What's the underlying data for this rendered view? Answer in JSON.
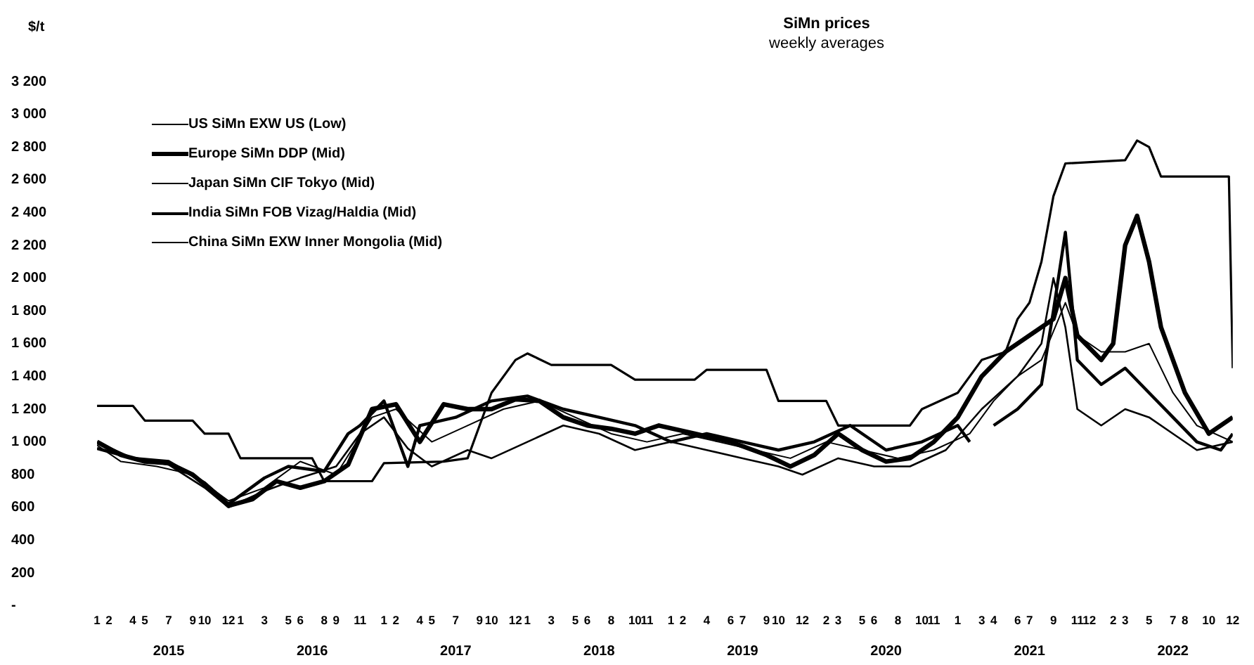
{
  "chart_data": {
    "type": "line",
    "title": "SiMn prices",
    "subtitle": "weekly averages",
    "ylabel": "$/t",
    "xlim": [
      "2015-01",
      "2022-12"
    ],
    "x2lim": [
      "2015-07",
      "2022-07"
    ],
    "xticks": [
      {
        "value": "2015-01",
        "label": "1"
      },
      {
        "value": "2015-02",
        "label": "2"
      },
      {
        "value": "2015-04",
        "label": "4"
      },
      {
        "value": "2015-05",
        "label": "5"
      },
      {
        "value": "2015-07",
        "label": "7"
      },
      {
        "value": "2015-09",
        "label": "9"
      },
      {
        "value": "2015-10",
        "label": "10"
      },
      {
        "value": "2015-12",
        "label": "12"
      },
      {
        "value": "2016-01",
        "label": "1"
      },
      {
        "value": "2016-03",
        "label": "3"
      },
      {
        "value": "2016-05",
        "label": "5"
      },
      {
        "value": "2016-06",
        "label": "6"
      },
      {
        "value": "2016-08",
        "label": "8"
      },
      {
        "value": "2016-09",
        "label": "9"
      },
      {
        "value": "2016-11",
        "label": "11"
      },
      {
        "value": "2017-01",
        "label": "1"
      },
      {
        "value": "2017-02",
        "label": "2"
      },
      {
        "value": "2017-04",
        "label": "4"
      },
      {
        "value": "2017-05",
        "label": "5"
      },
      {
        "value": "2017-07",
        "label": "7"
      },
      {
        "value": "2017-09",
        "label": "9"
      },
      {
        "value": "2017-10",
        "label": "10"
      },
      {
        "value": "2017-12",
        "label": "12"
      },
      {
        "value": "2018-01",
        "label": "1"
      },
      {
        "value": "2018-03",
        "label": "3"
      },
      {
        "value": "2018-05",
        "label": "5"
      },
      {
        "value": "2018-06",
        "label": "6"
      },
      {
        "value": "2018-08",
        "label": "8"
      },
      {
        "value": "2018-10",
        "label": "10"
      },
      {
        "value": "2018-11",
        "label": "11"
      },
      {
        "value": "2019-01",
        "label": "1"
      },
      {
        "value": "2019-02",
        "label": "2"
      },
      {
        "value": "2019-04",
        "label": "4"
      },
      {
        "value": "2019-06",
        "label": "6"
      },
      {
        "value": "2019-07",
        "label": "7"
      },
      {
        "value": "2019-09",
        "label": "9"
      },
      {
        "value": "2019-10",
        "label": "10"
      },
      {
        "value": "2019-12",
        "label": "12"
      },
      {
        "value": "2020-02",
        "label": "2"
      },
      {
        "value": "2020-03",
        "label": "3"
      },
      {
        "value": "2020-05",
        "label": "5"
      },
      {
        "value": "2020-06",
        "label": "6"
      },
      {
        "value": "2020-08",
        "label": "8"
      },
      {
        "value": "2020-10",
        "label": "10"
      },
      {
        "value": "2020-11",
        "label": "11"
      },
      {
        "value": "2021-01",
        "label": "1"
      },
      {
        "value": "2021-03",
        "label": "3"
      },
      {
        "value": "2021-04",
        "label": "4"
      },
      {
        "value": "2021-06",
        "label": "6"
      },
      {
        "value": "2021-07",
        "label": "7"
      },
      {
        "value": "2021-09",
        "label": "9"
      },
      {
        "value": "2021-11",
        "label": "11"
      },
      {
        "value": "2021-12",
        "label": "12"
      },
      {
        "value": "2022-02",
        "label": "2"
      },
      {
        "value": "2022-03",
        "label": "3"
      },
      {
        "value": "2022-05",
        "label": "5"
      },
      {
        "value": "2022-07",
        "label": "7"
      },
      {
        "value": "2022-08",
        "label": "8"
      },
      {
        "value": "2022-10",
        "label": "10"
      },
      {
        "value": "2022-12",
        "label": "12"
      }
    ],
    "x2ticks": [
      {
        "value": "2015-07",
        "label": "2015"
      },
      {
        "value": "2016-07",
        "label": "2016"
      },
      {
        "value": "2017-07",
        "label": "2017"
      },
      {
        "value": "2018-07",
        "label": "2018"
      },
      {
        "value": "2019-07",
        "label": "2019"
      },
      {
        "value": "2020-07",
        "label": "2020"
      },
      {
        "value": "2021-07",
        "label": "2021"
      },
      {
        "value": "2022-07",
        "label": "2022"
      }
    ],
    "ylim": [
      0,
      3200
    ],
    "yticks": [
      {
        "value": 0,
        "label": "-"
      },
      200,
      400,
      600,
      800,
      {
        "value": 1000,
        "label": "1 000"
      },
      {
        "value": 1200,
        "label": "1 200"
      },
      {
        "value": 1400,
        "label": "1 400"
      },
      {
        "value": 1600,
        "label": "1 600"
      },
      {
        "value": 1800,
        "label": "1 800"
      },
      {
        "value": 2000,
        "label": "2 000"
      },
      {
        "value": 2200,
        "label": "2 200"
      },
      {
        "value": 2400,
        "label": "2 400"
      },
      {
        "value": 2600,
        "label": "2 600"
      },
      {
        "value": 2800,
        "label": "2 800"
      },
      {
        "value": 3000,
        "label": "3 000"
      },
      {
        "value": 3200,
        "label": "3 200"
      }
    ],
    "grid": false,
    "legend": "top left",
    "marker": "none",
    "line_style": "solid",
    "series": [
      {
        "name": "US SiMn EXW US (Low)",
        "color": "#000000",
        "x": [
          "2015-01",
          "2015-04",
          "2015-05",
          "2015-09",
          "2015-10",
          "2015-12",
          "2016-01",
          "2016-07",
          "2016-08",
          "2016-12",
          "2017-01",
          "2017-06",
          "2017-08",
          "2017-10",
          "2017-12",
          "2018-01",
          "2018-03",
          "2018-08",
          "2018-10",
          "2019-03",
          "2019-04",
          "2019-09",
          "2019-10",
          "2020-02",
          "2020-03",
          "2020-09",
          "2020-10",
          "2021-01",
          "2021-03",
          "2021-05",
          "2021-06",
          "2021-07",
          "2021-08",
          "2021-09",
          "2021-10",
          "2022-03",
          "2022-04",
          "2022-05",
          "2022-06",
          "2022-11-22",
          "2022-12"
        ],
        "values": [
          1220,
          1220,
          1130,
          1130,
          1050,
          1050,
          900,
          900,
          760,
          760,
          870,
          880,
          900,
          1300,
          1500,
          1540,
          1470,
          1470,
          1380,
          1380,
          1440,
          1440,
          1250,
          1250,
          1100,
          1100,
          1200,
          1300,
          1500,
          1550,
          1750,
          1850,
          2100,
          2500,
          2700,
          2720,
          2840,
          2800,
          2620,
          2620,
          1450
        ]
      },
      {
        "name": "Europe SiMn DDP (Mid)",
        "color": "#000000",
        "x": [
          "2015-01",
          "2015-03",
          "2015-05",
          "2015-07",
          "2015-09",
          "2015-11",
          "2015-12",
          "2016-02",
          "2016-04",
          "2016-06",
          "2016-08",
          "2016-10",
          "2016-12",
          "2017-02",
          "2017-04",
          "2017-06",
          "2017-08",
          "2017-10",
          "2017-12",
          "2018-02",
          "2018-04",
          "2018-06",
          "2018-08",
          "2018-10",
          "2018-12",
          "2019-03",
          "2019-06",
          "2019-09",
          "2019-11",
          "2020-01",
          "2020-03",
          "2020-05",
          "2020-07",
          "2020-09",
          "2020-11",
          "2021-01",
          "2021-03",
          "2021-05",
          "2021-07",
          "2021-09",
          "2021-10",
          "2021-11",
          "2022-01",
          "2022-02",
          "2022-03",
          "2022-04",
          "2022-05",
          "2022-06",
          "2022-08",
          "2022-10",
          "2022-12"
        ],
        "values": [
          1000,
          920,
          880,
          870,
          800,
          680,
          610,
          650,
          760,
          720,
          760,
          860,
          1200,
          1230,
          1000,
          1230,
          1200,
          1200,
          1260,
          1250,
          1150,
          1100,
          1080,
          1050,
          1100,
          1050,
          1000,
          920,
          850,
          920,
          1050,
          950,
          880,
          900,
          1000,
          1150,
          1400,
          1550,
          1650,
          1750,
          2000,
          1650,
          1500,
          1600,
          2200,
          2380,
          2100,
          1700,
          1300,
          1050,
          1150
        ]
      },
      {
        "name": "Japan SiMn CIF Tokyo (Mid)",
        "color": "#000000",
        "x": [
          "2015-01",
          "2015-03",
          "2015-06",
          "2015-09",
          "2015-12",
          "2016-03",
          "2016-06",
          "2016-09",
          "2016-12",
          "2017-02",
          "2017-05",
          "2017-08",
          "2017-11",
          "2018-02",
          "2018-05",
          "2018-08",
          "2018-11",
          "2019-02",
          "2019-05",
          "2019-08",
          "2019-11",
          "2020-02",
          "2020-05",
          "2020-08",
          "2020-11",
          "2021-02",
          "2021-04",
          "2021-06",
          "2021-08",
          "2021-10",
          "2021-11",
          "2022-01",
          "2022-03",
          "2022-05",
          "2022-07",
          "2022-09",
          "2022-12"
        ],
        "values": [
          980,
          880,
          850,
          800,
          640,
          720,
          880,
          800,
          1150,
          1200,
          1000,
          1100,
          1200,
          1250,
          1150,
          1050,
          1000,
          1050,
          1000,
          950,
          900,
          1000,
          950,
          900,
          950,
          1050,
          1250,
          1400,
          1500,
          1850,
          1650,
          1550,
          1550,
          1600,
          1300,
          1100,
          1000
        ]
      },
      {
        "name": "India SiMn FOB Vizag/Haldia (Mid)",
        "color": "#000000",
        "x": [
          "2015-01",
          "2015-04",
          "2015-07",
          "2015-10",
          "2015-12",
          "2016-03",
          "2016-05",
          "2016-08",
          "2016-10",
          "2016-11",
          "2017-01",
          "2017-03",
          "2017-04",
          "2017-07",
          "2017-10",
          "2018-01",
          "2018-04",
          "2018-07",
          "2018-10",
          "2019-01",
          "2019-04",
          "2019-07",
          "2019-10",
          "2020-01",
          "2020-04",
          "2020-07",
          "2020-10",
          "2021-01",
          "2021-02",
          "2021-03",
          "2021-04",
          "2021-06",
          "2021-08",
          "2021-09",
          "2021-10",
          "2021-11",
          "2022-01",
          "2022-03",
          "2022-05",
          "2022-07",
          "2022-09",
          "2022-11",
          "2022-12"
        ],
        "values": [
          960,
          900,
          880,
          750,
          620,
          780,
          850,
          820,
          1050,
          1100,
          1250,
          850,
          1100,
          1150,
          1250,
          1280,
          1200,
          1150,
          1100,
          1000,
          1050,
          1000,
          950,
          1000,
          1100,
          950,
          1000,
          1100,
          1000,
          null,
          1100,
          1200,
          1350,
          1800,
          2280,
          1500,
          1350,
          1450,
          1300,
          1150,
          1000,
          950,
          1050
        ]
      },
      {
        "name": "China SiMn EXW Inner Mongolia (Mid)",
        "color": "#000000",
        "x": [
          "2015-01",
          "2015-04",
          "2015-07",
          "2015-10",
          "2015-12",
          "2016-03",
          "2016-06",
          "2016-09",
          "2016-11",
          "2017-01",
          "2017-03",
          "2017-05",
          "2017-08",
          "2017-10",
          "2018-01",
          "2018-04",
          "2018-07",
          "2018-10",
          "2019-01",
          "2019-04",
          "2019-07",
          "2019-10",
          "2019-12",
          "2020-03",
          "2020-06",
          "2020-09",
          "2020-12",
          "2021-03",
          "2021-06",
          "2021-08",
          "2021-09",
          "2021-10",
          "2021-11",
          "2022-01",
          "2022-03",
          "2022-05",
          "2022-07",
          "2022-09",
          "2022-12"
        ],
        "values": [
          1000,
          900,
          860,
          720,
          600,
          700,
          780,
          850,
          1050,
          1150,
          960,
          850,
          950,
          900,
          1000,
          1100,
          1050,
          950,
          1000,
          950,
          900,
          850,
          800,
          900,
          850,
          850,
          950,
          1200,
          1400,
          1600,
          2000,
          1700,
          1200,
          1100,
          1200,
          1150,
          1050,
          950,
          1000
        ]
      }
    ]
  }
}
